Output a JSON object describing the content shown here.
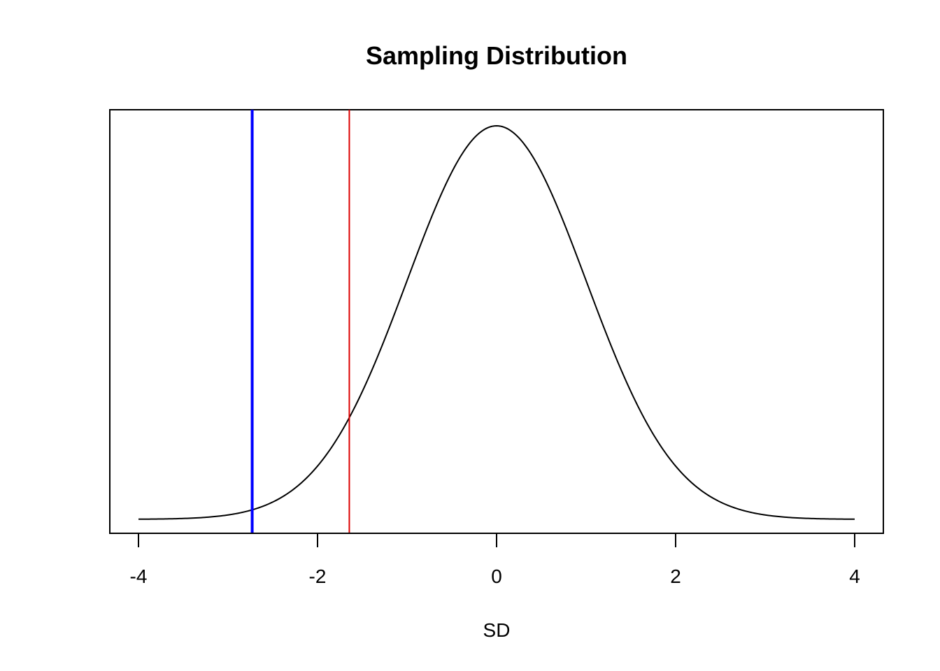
{
  "chart_data": {
    "type": "line",
    "title": "Sampling Distribution",
    "xlabel": "SD",
    "ylabel": "",
    "xlim": [
      -4,
      4
    ],
    "x_ticks": [
      -4,
      -2,
      0,
      2,
      4
    ],
    "x_tick_labels": [
      "-4",
      "-2",
      "0",
      "2",
      "4"
    ],
    "y_axis_shown": false,
    "grid": false,
    "series": [
      {
        "curve": "standard normal density",
        "mean": 0,
        "sd": 1,
        "color": "#000000"
      }
    ],
    "vlines": [
      {
        "x": -2.73,
        "color": "#0000ff",
        "weight": "thick"
      },
      {
        "x": -1.645,
        "color": "#dd0000",
        "weight": "thin"
      }
    ]
  }
}
